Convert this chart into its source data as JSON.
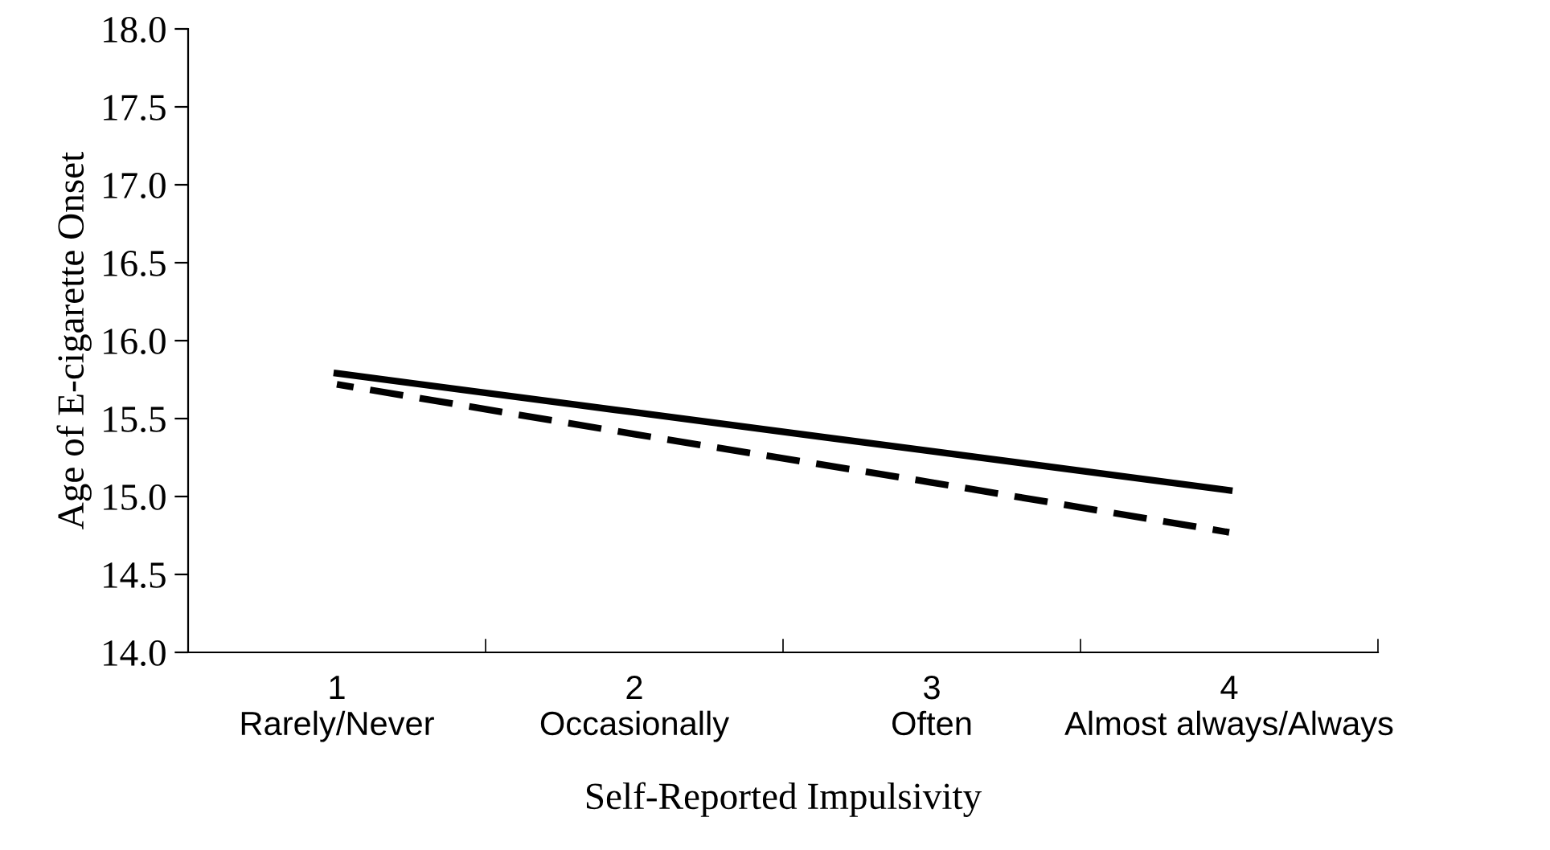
{
  "chart_data": {
    "type": "line",
    "xlabel": "Self-Reported Impulsivity",
    "ylabel": "Age of E-cigarette Onset",
    "categories": [
      "1\nRarely/Never",
      "2\nOccasionally",
      "3\nOften",
      "4\nAlmost always/Always"
    ],
    "series": [
      {
        "color": "#000000",
        "line_style": "solid",
        "values": [
          15.79,
          15.54,
          15.29,
          15.04
        ]
      },
      {
        "color": "#000000",
        "line_style": "dashed",
        "values": [
          15.72,
          15.4,
          15.09,
          14.77
        ]
      }
    ],
    "ylim": [
      14.0,
      18.0
    ],
    "yticks": [
      {
        "value": 14.0,
        "label": "14.0"
      },
      {
        "value": 14.5,
        "label": "14.5"
      },
      {
        "value": 15.0,
        "label": "15.0"
      },
      {
        "value": 15.5,
        "label": "15.5"
      },
      {
        "value": 16.0,
        "label": "16.0"
      },
      {
        "value": 16.5,
        "label": "16.5"
      },
      {
        "value": 17.0,
        "label": "17.0"
      },
      {
        "value": 17.5,
        "label": "17.5"
      },
      {
        "value": 18.0,
        "label": "18.0"
      }
    ],
    "grid": false,
    "legend": false,
    "marker": "none"
  }
}
